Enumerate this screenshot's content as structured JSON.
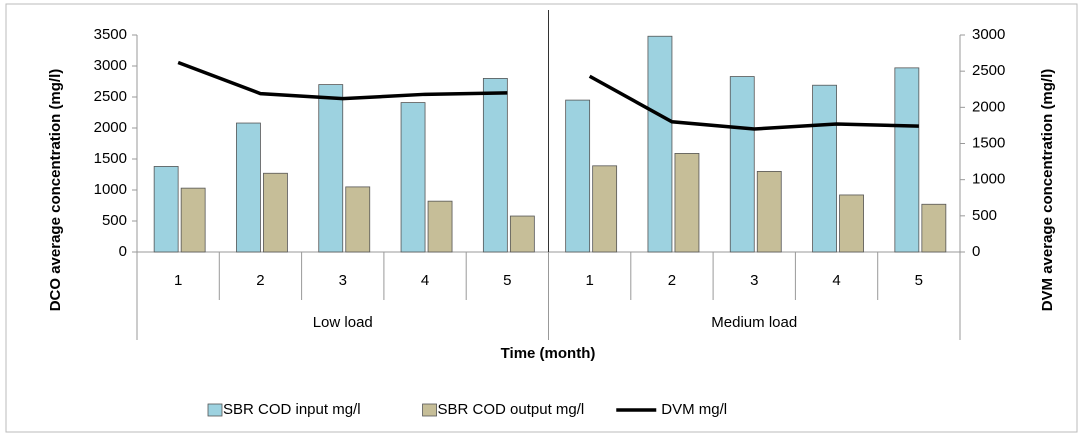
{
  "chart_data": {
    "type": "bar-line",
    "x_label": "Time (month)",
    "y_label": "DCO  average concentration (mg/l)",
    "y2_label": "DVM  average concentration (mg/l)",
    "groups": [
      {
        "name": "Low load",
        "categories": [
          "1",
          "2",
          "3",
          "4",
          "5"
        ]
      },
      {
        "name": "Medium load",
        "categories": [
          "1",
          "2",
          "3",
          "4",
          "5"
        ]
      }
    ],
    "series": [
      {
        "name": "SBR COD input mg/l",
        "type": "bar",
        "color": "#9dd2e0",
        "values": [
          1380,
          2080,
          2700,
          2410,
          2800,
          2450,
          3480,
          2830,
          2690,
          2970
        ]
      },
      {
        "name": "SBR COD output mg/l",
        "type": "bar",
        "color": "#c6be98",
        "values": [
          1030,
          1270,
          1050,
          820,
          580,
          1390,
          1590,
          1300,
          920,
          770
        ]
      },
      {
        "name": "DVM mg/l",
        "type": "line",
        "axis": "y2",
        "color": "#000000",
        "values": [
          2620,
          2190,
          2120,
          2180,
          2200,
          2430,
          1800,
          1700,
          1770,
          1740
        ]
      }
    ],
    "ylim": [
      0,
      3500
    ],
    "yticks": [
      0,
      500,
      1000,
      1500,
      2000,
      2500,
      3000,
      3500
    ],
    "y2lim": [
      0,
      3000
    ],
    "y2ticks": [
      0,
      500,
      1000,
      1500,
      2000,
      2500,
      3000
    ],
    "legend": "bottom"
  }
}
